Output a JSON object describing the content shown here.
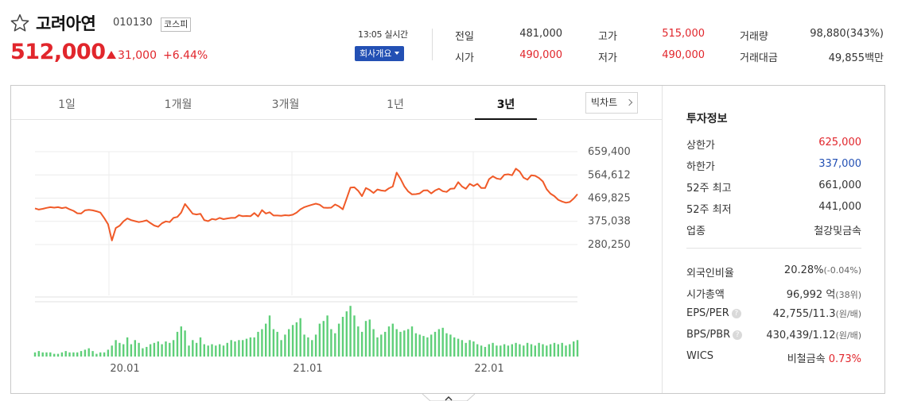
{
  "stock": {
    "name": "고려아연",
    "code": "010130",
    "market": "코스피",
    "price": "512,000",
    "change": "31,000",
    "change_pct": "+6.44%"
  },
  "realtime": {
    "label": "13:05 실시간",
    "company_button": "회사개요"
  },
  "summary": {
    "prev_close_label": "전일",
    "prev_close": "481,000",
    "open_label": "시가",
    "open": "490,000",
    "high_label": "고가",
    "high": "515,000",
    "low_label": "저가",
    "low": "490,000",
    "volume_label": "거래량",
    "volume": "98,880(343%)",
    "value_label": "거래대금",
    "value": "49,855백만"
  },
  "tabs": [
    "1일",
    "1개월",
    "3개월",
    "1년",
    "3년"
  ],
  "active_tab": "3년",
  "big_chart_label": "빅차트",
  "chart_data": {
    "type": "line",
    "y_ticks": [
      "659,400",
      "564,612",
      "469,825",
      "375,038",
      "280,250"
    ],
    "y_tick_values": [
      659400,
      564612,
      469825,
      375038,
      280250
    ],
    "x_ticks": [
      "20.01",
      "21.01",
      "22.01"
    ],
    "ylim": [
      280250,
      659400
    ],
    "price": [
      428000,
      423000,
      426000,
      430000,
      433000,
      431000,
      433000,
      429000,
      432000,
      424000,
      418000,
      408000,
      407000,
      420000,
      422000,
      420000,
      416000,
      411000,
      388000,
      363000,
      297000,
      348000,
      357000,
      375000,
      387000,
      380000,
      376000,
      372000,
      375000,
      379000,
      368000,
      358000,
      353000,
      367000,
      375000,
      372000,
      389000,
      393000,
      411000,
      446000,
      426000,
      406000,
      403000,
      406000,
      380000,
      376000,
      385000,
      382000,
      389000,
      384000,
      387000,
      389000,
      389000,
      400000,
      396000,
      397000,
      396000,
      409000,
      395000,
      421000,
      407000,
      412000,
      399000,
      399000,
      398000,
      400000,
      399000,
      402000,
      411000,
      424000,
      433000,
      438000,
      443000,
      447000,
      443000,
      431000,
      430000,
      431000,
      444000,
      436000,
      424000,
      468000,
      513000,
      514000,
      500000,
      478000,
      511000,
      503000,
      491000,
      505000,
      501000,
      499000,
      510000,
      517000,
      574000,
      549000,
      518000,
      497000,
      485000,
      486000,
      489000,
      501000,
      502000,
      489000,
      501000,
      508000,
      498000,
      495000,
      508000,
      509000,
      535000,
      517000,
      508000,
      528000,
      519000,
      528000,
      511000,
      511000,
      547000,
      559000,
      550000,
      547000,
      565000,
      567000,
      563000,
      590000,
      578000,
      553000,
      545000,
      563000,
      561000,
      552000,
      538000,
      506000,
      488000,
      478000,
      463000,
      456000,
      451000,
      454000,
      468000,
      486000
    ],
    "volume": [
      3,
      4,
      3,
      3,
      3,
      2,
      2,
      3,
      4,
      3,
      3,
      3,
      4,
      5,
      6,
      4,
      2,
      3,
      3,
      5,
      8,
      12,
      10,
      9,
      14,
      9,
      12,
      10,
      6,
      7,
      9,
      10,
      11,
      9,
      11,
      10,
      12,
      18,
      22,
      19,
      8,
      12,
      10,
      14,
      9,
      8,
      9,
      8,
      9,
      8,
      10,
      12,
      11,
      12,
      12,
      13,
      14,
      14,
      18,
      20,
      24,
      30,
      20,
      18,
      12,
      16,
      20,
      23,
      25,
      28,
      16,
      14,
      12,
      16,
      24,
      26,
      30,
      20,
      17,
      24,
      29,
      33,
      37,
      30,
      22,
      18,
      26,
      27,
      20,
      14,
      16,
      18,
      22,
      24,
      20,
      18,
      19,
      20,
      22,
      17,
      16,
      15,
      14,
      16,
      18,
      20,
      21,
      17,
      16,
      14,
      13,
      12,
      10,
      12,
      11,
      9,
      8,
      7,
      9,
      10,
      8,
      8,
      9,
      8,
      9,
      10,
      9,
      8,
      10,
      9,
      8,
      10,
      9,
      8,
      9,
      10,
      9,
      10,
      8,
      9,
      11,
      12
    ]
  },
  "info": {
    "title": "투자정보",
    "upper_limit_label": "상한가",
    "upper_limit": "625,000",
    "lower_limit_label": "하한가",
    "lower_limit": "337,000",
    "high52_label": "52주 최고",
    "high52": "661,000",
    "low52_label": "52주 최저",
    "low52": "441,000",
    "industry_label": "업종",
    "industry": "철강및금속",
    "foreign_label": "외국인비율",
    "foreign": "20.28%",
    "foreign_change": "(-0.04%)",
    "cap_label": "시가총액",
    "cap": "96,992",
    "cap_unit": "억",
    "cap_rank": "(38위)",
    "eps_label": "EPS/PER",
    "eps": "42,755/11.3",
    "eps_unit": "(원/배)",
    "bps_label": "BPS/PBR",
    "bps": "430,439/1.12",
    "bps_unit": "(원/배)",
    "help_mark": "?",
    "wics_label": "WICS",
    "wics": "비철금속",
    "wics_pct": "0.73%"
  },
  "colors": {
    "up": "#e1262c",
    "down": "#2350b4",
    "line": "#f05a28",
    "volume": "#5fcf79"
  }
}
